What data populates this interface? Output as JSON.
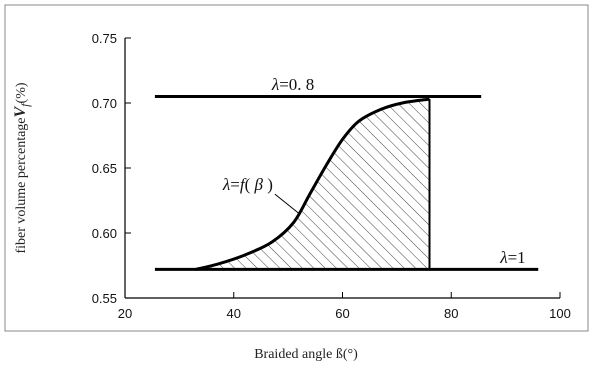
{
  "chart_data": {
    "type": "line",
    "title": "",
    "xlabel": "Braided angle ß(°)",
    "ylabel": {
      "prefix": "fiber volume percentage",
      "symbol": "V",
      "subscript": "f",
      "unit": "(%)"
    },
    "xlim": [
      20,
      100
    ],
    "ylim": [
      0.55,
      0.75
    ],
    "x_ticks": [
      "20",
      "40",
      "60",
      "80",
      "100"
    ],
    "x_tick_values": [
      20,
      40,
      60,
      80,
      100
    ],
    "y_ticks": [
      "0.55",
      "0.60",
      "0.65",
      "0.70",
      "0.75"
    ],
    "y_tick_values": [
      0.55,
      0.6,
      0.65,
      0.7,
      0.75
    ],
    "grid": false,
    "series": [
      {
        "x": [
          25.5,
          85.5
        ],
        "y": [
          0.705,
          0.705
        ]
      },
      {
        "x": [
          25.5,
          96
        ],
        "y": [
          0.572,
          0.572
        ]
      },
      {
        "x": [
          33,
          37,
          42,
          47,
          51,
          54,
          57,
          60,
          63,
          67,
          71,
          76
        ],
        "y": [
          0.572,
          0.576,
          0.583,
          0.593,
          0.608,
          0.63,
          0.652,
          0.672,
          0.686,
          0.695,
          0.7,
          0.703
        ]
      },
      {
        "x": [
          76,
          76
        ],
        "y": [
          0.572,
          0.703
        ]
      }
    ],
    "annotations": {
      "upper": {
        "symbol": "λ",
        "text": "=0. 8",
        "x": 47,
        "y": 0.71
      },
      "lower": {
        "symbol": "λ",
        "text": "=1",
        "x": 89,
        "y": 0.577
      },
      "curve": {
        "symbol": "λ",
        "equals": "=",
        "func": "f",
        "open": "(",
        "arg": "β",
        "close": ")",
        "x": 38,
        "y": 0.633
      }
    },
    "hatch_region": {
      "x_from": 33,
      "x_to": 76,
      "y_base": 0.572
    }
  }
}
